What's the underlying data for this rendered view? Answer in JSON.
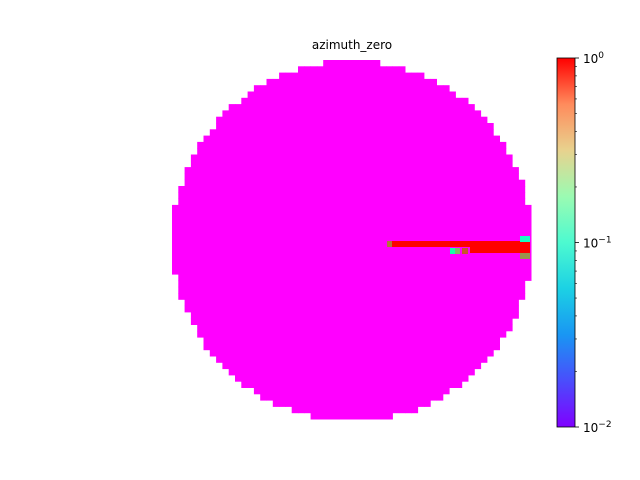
{
  "chart_data": {
    "type": "heatmap",
    "title": "azimuth_zero",
    "grid": false,
    "shape": "disc",
    "background_value": 0.01,
    "colorscale": "rainbow",
    "colorbar": {
      "scale": "log",
      "range": [
        0.01,
        1
      ],
      "ticks": [
        {
          "value": 1,
          "base": "10",
          "exp": "0"
        },
        {
          "value": 0.1,
          "base": "10",
          "exp": "−1"
        },
        {
          "value": 0.01,
          "base": "10",
          "exp": "−2"
        }
      ]
    },
    "features": [
      {
        "description": "thin high-value streak from center toward right edge",
        "value": 1.0
      },
      {
        "description": "wider high-value band near right edge",
        "value": 1.0
      },
      {
        "description": "mid-value cells at band start",
        "values": [
          0.12,
          0.3,
          0.6
        ]
      },
      {
        "description": "cyan cell at right edge",
        "value": 0.08
      },
      {
        "description": "light-orange cell at right edge",
        "value": 0.4
      }
    ]
  }
}
